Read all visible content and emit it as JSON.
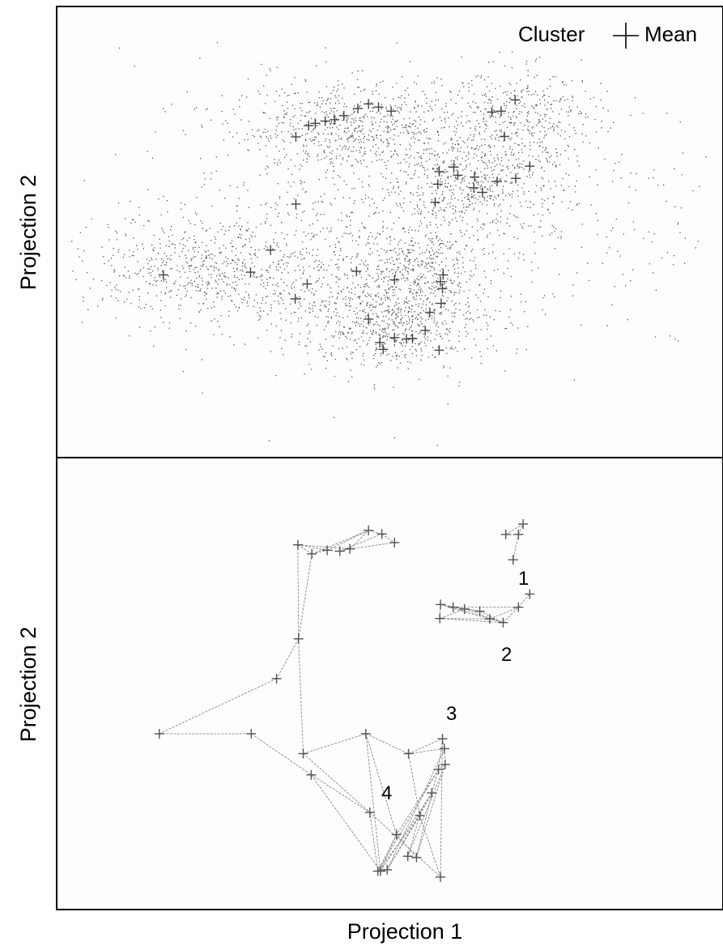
{
  "chart_data": [
    {
      "type": "scatter",
      "panel": "top",
      "ylabel": "Projection 2",
      "legend": {
        "placement": "top-right",
        "entries": [
          "Cluster",
          "Mean"
        ]
      },
      "xlim": [
        0,
        100
      ],
      "ylim": [
        0,
        100
      ],
      "point_clouds": [
        {
          "center": [
            44,
            73
          ],
          "spread": [
            9,
            5
          ],
          "count": 650
        },
        {
          "center": [
            62,
            61
          ],
          "spread": [
            7,
            6
          ],
          "count": 600
        },
        {
          "center": [
            70,
            76
          ],
          "spread": [
            6,
            5
          ],
          "count": 350
        },
        {
          "center": [
            50,
            30
          ],
          "spread": [
            7,
            5
          ],
          "count": 650
        },
        {
          "center": [
            54,
            42
          ],
          "spread": [
            5,
            5
          ],
          "count": 350
        },
        {
          "center": [
            30,
            42
          ],
          "spread": [
            12,
            7
          ],
          "count": 700
        },
        {
          "center": [
            19,
            42
          ],
          "spread": [
            6,
            5
          ],
          "count": 200
        },
        {
          "center": [
            55,
            55
          ],
          "spread": [
            22,
            17
          ],
          "count": 700
        }
      ],
      "means": [
        [
          35.9,
          71.1
        ],
        [
          37.8,
          73.6
        ],
        [
          38.8,
          74.1
        ],
        [
          40.3,
          74.6
        ],
        [
          41.7,
          74.9
        ],
        [
          43.1,
          75.8
        ],
        [
          45.2,
          77.4
        ],
        [
          46.8,
          78.4
        ],
        [
          48.3,
          77.7
        ],
        [
          50.2,
          76.8
        ],
        [
          65.3,
          76.6
        ],
        [
          66.7,
          76.8
        ],
        [
          67.2,
          71.2
        ],
        [
          68.8,
          79.3
        ],
        [
          71.0,
          64.6
        ],
        [
          68.9,
          61.9
        ],
        [
          66.1,
          61.2
        ],
        [
          63.9,
          58.8
        ],
        [
          62.6,
          59.8
        ],
        [
          62.7,
          62.2
        ],
        [
          60.2,
          62.6
        ],
        [
          57.2,
          60.6
        ],
        [
          57.4,
          63.4
        ],
        [
          56.8,
          56.6
        ],
        [
          59.6,
          64.4
        ],
        [
          16.0,
          40.5
        ],
        [
          29.1,
          41.1
        ],
        [
          32.1,
          46.0
        ],
        [
          35.9,
          56.2
        ],
        [
          37.6,
          38.5
        ],
        [
          35.8,
          35.2
        ],
        [
          45.0,
          41.3
        ],
        [
          50.7,
          39.4
        ],
        [
          57.6,
          39.0
        ],
        [
          58.0,
          40.5
        ],
        [
          57.9,
          37.5
        ],
        [
          57.7,
          34.2
        ],
        [
          56.0,
          32.2
        ],
        [
          55.3,
          28.2
        ],
        [
          50.7,
          26.6
        ],
        [
          52.5,
          26.3
        ],
        [
          53.4,
          26.4
        ],
        [
          48.5,
          25.5
        ],
        [
          49.0,
          24.0
        ],
        [
          46.8,
          30.7
        ],
        [
          57.4,
          23.8
        ]
      ]
    },
    {
      "type": "scatter",
      "panel": "bottom",
      "ylabel": "Projection 2",
      "xlabel": "Projection 1",
      "xlim": [
        0,
        100
      ],
      "ylim": [
        0,
        100
      ],
      "cluster_labels": [
        "1",
        "2",
        "3",
        "4"
      ],
      "nodes": [
        [
          67.4,
          83.0
        ],
        [
          69.3,
          83.0
        ],
        [
          70.0,
          85.3
        ],
        [
          68.5,
          77.4
        ],
        [
          57.6,
          67.5
        ],
        [
          57.5,
          64.4
        ],
        [
          59.5,
          66.9
        ],
        [
          61.2,
          66.5
        ],
        [
          63.5,
          66.0
        ],
        [
          65.0,
          64.3
        ],
        [
          67.0,
          63.5
        ],
        [
          69.3,
          66.9
        ],
        [
          71.0,
          69.8
        ],
        [
          36.2,
          80.7
        ],
        [
          38.3,
          78.7
        ],
        [
          40.6,
          79.5
        ],
        [
          42.5,
          79.3
        ],
        [
          44.0,
          79.8
        ],
        [
          46.8,
          83.9
        ],
        [
          48.8,
          83.1
        ],
        [
          50.7,
          81.2
        ],
        [
          36.3,
          59.9
        ],
        [
          33.0,
          51.1
        ],
        [
          15.4,
          38.9
        ],
        [
          29.2,
          38.9
        ],
        [
          38.2,
          29.8
        ],
        [
          37.0,
          34.5
        ],
        [
          46.4,
          38.9
        ],
        [
          52.8,
          34.5
        ],
        [
          57.9,
          37.8
        ],
        [
          58.2,
          35.6
        ],
        [
          58.3,
          32.1
        ],
        [
          57.3,
          31.0
        ],
        [
          56.3,
          25.8
        ],
        [
          54.5,
          20.8
        ],
        [
          52.7,
          11.8
        ],
        [
          54.0,
          11.5
        ],
        [
          51.0,
          16.6
        ],
        [
          48.6,
          8.5
        ],
        [
          49.6,
          8.8
        ],
        [
          47.0,
          21.5
        ],
        [
          48.2,
          8.5
        ],
        [
          57.6,
          7.2
        ]
      ],
      "edges": [
        [
          0,
          1
        ],
        [
          1,
          2
        ],
        [
          1,
          3
        ],
        [
          0,
          2
        ],
        [
          4,
          5
        ],
        [
          4,
          6
        ],
        [
          4,
          7
        ],
        [
          4,
          8
        ],
        [
          4,
          9
        ],
        [
          4,
          10
        ],
        [
          5,
          7
        ],
        [
          5,
          9
        ],
        [
          6,
          8
        ],
        [
          7,
          10
        ],
        [
          8,
          10
        ],
        [
          9,
          11
        ],
        [
          10,
          11
        ],
        [
          11,
          12
        ],
        [
          6,
          11
        ],
        [
          5,
          10
        ],
        [
          13,
          15
        ],
        [
          13,
          14
        ],
        [
          14,
          15
        ],
        [
          15,
          16
        ],
        [
          16,
          17
        ],
        [
          17,
          18
        ],
        [
          18,
          19
        ],
        [
          19,
          20
        ],
        [
          14,
          18
        ],
        [
          15,
          18
        ],
        [
          13,
          17
        ],
        [
          17,
          20
        ],
        [
          16,
          19
        ],
        [
          13,
          21
        ],
        [
          14,
          21
        ],
        [
          21,
          22
        ],
        [
          22,
          23
        ],
        [
          23,
          24
        ],
        [
          24,
          25
        ],
        [
          21,
          26
        ],
        [
          26,
          27
        ],
        [
          27,
          28
        ],
        [
          28,
          29
        ],
        [
          25,
          38
        ],
        [
          25,
          40
        ],
        [
          26,
          40
        ],
        [
          27,
          37
        ],
        [
          27,
          38
        ],
        [
          28,
          34
        ],
        [
          28,
          30
        ],
        [
          29,
          32
        ],
        [
          29,
          30
        ],
        [
          30,
          31
        ],
        [
          31,
          32
        ],
        [
          32,
          33
        ],
        [
          33,
          34
        ],
        [
          34,
          35
        ],
        [
          35,
          36
        ],
        [
          36,
          37
        ],
        [
          37,
          38
        ],
        [
          38,
          39
        ],
        [
          39,
          41
        ],
        [
          40,
          41
        ],
        [
          41,
          37
        ],
        [
          34,
          39
        ],
        [
          33,
          36
        ],
        [
          32,
          37
        ],
        [
          31,
          35
        ],
        [
          29,
          42
        ],
        [
          34,
          42
        ],
        [
          40,
          42
        ],
        [
          33,
          38
        ],
        [
          32,
          41
        ],
        [
          30,
          39
        ],
        [
          31,
          36
        ],
        [
          34,
          41
        ],
        [
          33,
          39
        ]
      ]
    }
  ]
}
